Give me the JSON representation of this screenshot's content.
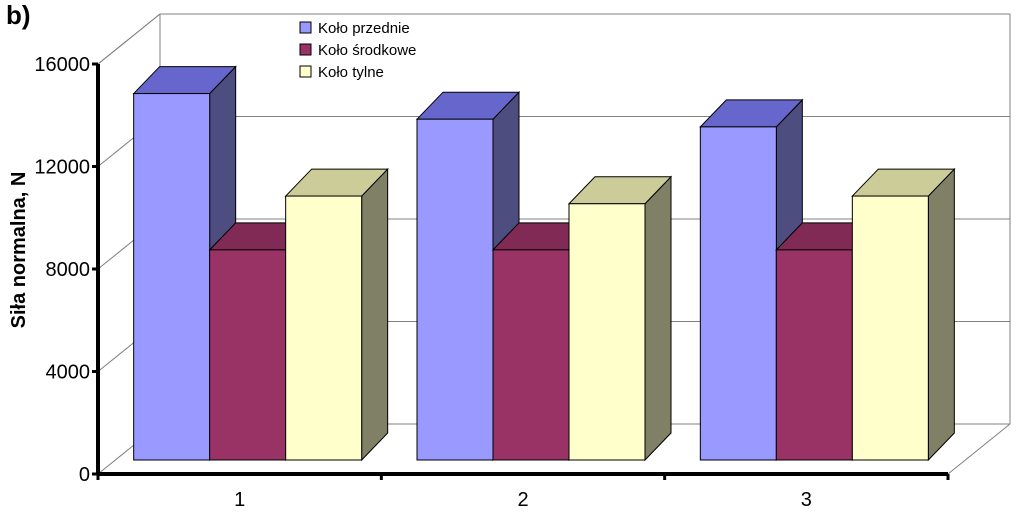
{
  "panel_label": "b)",
  "chart_data": {
    "type": "bar",
    "title": "",
    "xlabel": "",
    "ylabel": "Siła normalna, N",
    "ylim": [
      0,
      16000
    ],
    "yticks": [
      0,
      4000,
      8000,
      12000,
      16000
    ],
    "categories": [
      "1",
      "2",
      "3"
    ],
    "series": [
      {
        "name": "Koło przednie",
        "values": [
          14300,
          13300,
          13000
        ]
      },
      {
        "name": "Koło środkowe",
        "values": [
          8200,
          8200,
          8200
        ]
      },
      {
        "name": "Koło tylne",
        "values": [
          10300,
          10000,
          10300
        ]
      }
    ],
    "grid": true,
    "legend_position": "top",
    "three_d": true,
    "colors": {
      "series_front": [
        "#9999ff",
        "#993366",
        "#ffffcc"
      ],
      "series_side": [
        "#4d4d80",
        "#4d1a33",
        "#808066"
      ],
      "series_top": [
        "#6666cc",
        "#802a55",
        "#cccc99"
      ],
      "wall_line": "#808080",
      "axis": "#000000"
    }
  }
}
